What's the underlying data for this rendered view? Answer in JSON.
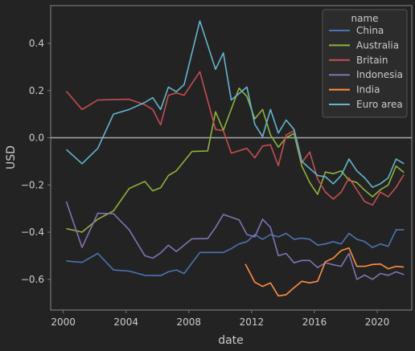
{
  "chart_data": {
    "type": "line",
    "title": "",
    "xlabel": "date",
    "ylabel": "USD",
    "xlim": [
      1999.2,
      2022.2
    ],
    "ylim": [
      -0.73,
      0.56
    ],
    "x_ticks": [
      2000,
      2004,
      2008,
      2012,
      2016,
      2020
    ],
    "x_tick_labels": [
      "2000",
      "2004",
      "2008",
      "2012",
      "2016",
      "2020"
    ],
    "y_ticks": [
      -0.6,
      -0.4,
      -0.2,
      0.0,
      0.2,
      0.4
    ],
    "y_tick_labels": [
      "−0.6",
      "−0.4",
      "−0.2",
      "0.0",
      "0.2",
      "0.4"
    ],
    "reference_line_y": 0,
    "grid": false,
    "legend": {
      "title": "name",
      "placement": "top-right"
    },
    "colors": {
      "background": "#232323",
      "axis": "#777777",
      "text": "#cccccc",
      "zero_line": "#aaaaaa",
      "legend_bg": "#2c2c2c"
    },
    "series": [
      {
        "name": "China",
        "color": "#4c72b0",
        "points": [
          [
            2000.2,
            -0.522
          ],
          [
            2001.2,
            -0.528
          ],
          [
            2002.2,
            -0.49
          ],
          [
            2003.2,
            -0.56
          ],
          [
            2004.2,
            -0.565
          ],
          [
            2005.2,
            -0.583
          ],
          [
            2006.2,
            -0.584
          ],
          [
            2006.7,
            -0.568
          ],
          [
            2007.2,
            -0.56
          ],
          [
            2007.7,
            -0.575
          ],
          [
            2008.7,
            -0.486
          ],
          [
            2010.2,
            -0.486
          ],
          [
            2010.7,
            -0.47
          ],
          [
            2011.2,
            -0.45
          ],
          [
            2011.7,
            -0.44
          ],
          [
            2012.2,
            -0.41
          ],
          [
            2012.7,
            -0.43
          ],
          [
            2013.2,
            -0.41
          ],
          [
            2013.7,
            -0.42
          ],
          [
            2014.2,
            -0.405
          ],
          [
            2014.7,
            -0.43
          ],
          [
            2015.2,
            -0.425
          ],
          [
            2015.7,
            -0.43
          ],
          [
            2016.2,
            -0.455
          ],
          [
            2016.7,
            -0.45
          ],
          [
            2017.2,
            -0.44
          ],
          [
            2017.7,
            -0.45
          ],
          [
            2018.2,
            -0.405
          ],
          [
            2018.7,
            -0.43
          ],
          [
            2019.2,
            -0.44
          ],
          [
            2019.7,
            -0.465
          ],
          [
            2020.2,
            -0.45
          ],
          [
            2020.7,
            -0.46
          ],
          [
            2021.2,
            -0.39
          ],
          [
            2021.7,
            -0.39
          ]
        ]
      },
      {
        "name": "Australia",
        "color": "#8eb33b",
        "points": [
          [
            2000.2,
            -0.385
          ],
          [
            2001.2,
            -0.4
          ],
          [
            2002.2,
            -0.345
          ],
          [
            2003.2,
            -0.31
          ],
          [
            2004.2,
            -0.215
          ],
          [
            2005.2,
            -0.185
          ],
          [
            2005.7,
            -0.225
          ],
          [
            2006.2,
            -0.212
          ],
          [
            2006.7,
            -0.16
          ],
          [
            2007.2,
            -0.14
          ],
          [
            2008.2,
            -0.058
          ],
          [
            2009.2,
            -0.056
          ],
          [
            2009.7,
            0.11
          ],
          [
            2010.2,
            0.032
          ],
          [
            2011.2,
            0.21
          ],
          [
            2011.7,
            0.175
          ],
          [
            2012.2,
            0.08
          ],
          [
            2012.7,
            0.12
          ],
          [
            2013.2,
            0.012
          ],
          [
            2013.7,
            -0.04
          ],
          [
            2014.2,
            0.0
          ],
          [
            2014.7,
            0.018
          ],
          [
            2015.2,
            -0.12
          ],
          [
            2015.7,
            -0.19
          ],
          [
            2016.2,
            -0.24
          ],
          [
            2016.7,
            -0.145
          ],
          [
            2017.2,
            -0.152
          ],
          [
            2017.7,
            -0.14
          ],
          [
            2018.2,
            -0.18
          ],
          [
            2018.7,
            -0.19
          ],
          [
            2019.2,
            -0.222
          ],
          [
            2019.7,
            -0.25
          ],
          [
            2020.2,
            -0.22
          ],
          [
            2020.7,
            -0.2
          ],
          [
            2021.2,
            -0.12
          ],
          [
            2021.7,
            -0.147
          ]
        ]
      },
      {
        "name": "Britain",
        "color": "#c44e52",
        "points": [
          [
            2000.2,
            0.197
          ],
          [
            2001.2,
            0.12
          ],
          [
            2002.2,
            0.16
          ],
          [
            2003.2,
            0.162
          ],
          [
            2004.2,
            0.163
          ],
          [
            2005.2,
            0.14
          ],
          [
            2005.7,
            0.12
          ],
          [
            2006.2,
            0.055
          ],
          [
            2006.7,
            0.18
          ],
          [
            2007.2,
            0.19
          ],
          [
            2007.7,
            0.18
          ],
          [
            2008.7,
            0.28
          ],
          [
            2009.7,
            0.035
          ],
          [
            2010.2,
            0.03
          ],
          [
            2010.7,
            -0.065
          ],
          [
            2011.7,
            -0.045
          ],
          [
            2012.2,
            -0.085
          ],
          [
            2012.7,
            -0.035
          ],
          [
            2013.2,
            -0.03
          ],
          [
            2013.7,
            -0.118
          ],
          [
            2014.2,
            0.012
          ],
          [
            2014.7,
            0.03
          ],
          [
            2015.2,
            -0.105
          ],
          [
            2015.7,
            -0.06
          ],
          [
            2016.2,
            -0.175
          ],
          [
            2016.7,
            -0.23
          ],
          [
            2017.2,
            -0.26
          ],
          [
            2017.7,
            -0.23
          ],
          [
            2018.2,
            -0.17
          ],
          [
            2018.7,
            -0.22
          ],
          [
            2019.2,
            -0.27
          ],
          [
            2019.7,
            -0.285
          ],
          [
            2020.2,
            -0.23
          ],
          [
            2020.7,
            -0.25
          ],
          [
            2021.2,
            -0.21
          ],
          [
            2021.7,
            -0.156
          ]
        ]
      },
      {
        "name": "Indonesia",
        "color": "#8172b3",
        "points": [
          [
            2000.2,
            -0.27
          ],
          [
            2001.2,
            -0.465
          ],
          [
            2002.2,
            -0.32
          ],
          [
            2003.2,
            -0.322
          ],
          [
            2004.2,
            -0.39
          ],
          [
            2005.2,
            -0.5
          ],
          [
            2005.7,
            -0.51
          ],
          [
            2006.2,
            -0.488
          ],
          [
            2006.7,
            -0.455
          ],
          [
            2007.2,
            -0.482
          ],
          [
            2008.2,
            -0.428
          ],
          [
            2009.2,
            -0.427
          ],
          [
            2009.7,
            -0.38
          ],
          [
            2010.2,
            -0.325
          ],
          [
            2011.2,
            -0.348
          ],
          [
            2011.7,
            -0.41
          ],
          [
            2012.2,
            -0.42
          ],
          [
            2012.7,
            -0.345
          ],
          [
            2013.2,
            -0.38
          ],
          [
            2013.7,
            -0.5
          ],
          [
            2014.2,
            -0.49
          ],
          [
            2014.7,
            -0.53
          ],
          [
            2015.2,
            -0.52
          ],
          [
            2015.7,
            -0.52
          ],
          [
            2016.2,
            -0.55
          ],
          [
            2016.7,
            -0.53
          ],
          [
            2017.2,
            -0.538
          ],
          [
            2017.7,
            -0.545
          ],
          [
            2018.2,
            -0.49
          ],
          [
            2018.7,
            -0.6
          ],
          [
            2019.2,
            -0.582
          ],
          [
            2019.7,
            -0.6
          ],
          [
            2020.2,
            -0.575
          ],
          [
            2020.7,
            -0.583
          ],
          [
            2021.2,
            -0.568
          ],
          [
            2021.7,
            -0.58
          ]
        ]
      },
      {
        "name": "India",
        "color": "#ff8f3f",
        "points": [
          [
            2011.6,
            -0.535
          ],
          [
            2012.2,
            -0.612
          ],
          [
            2012.7,
            -0.63
          ],
          [
            2013.2,
            -0.615
          ],
          [
            2013.7,
            -0.67
          ],
          [
            2014.2,
            -0.665
          ],
          [
            2014.7,
            -0.635
          ],
          [
            2015.2,
            -0.608
          ],
          [
            2015.7,
            -0.615
          ],
          [
            2016.2,
            -0.608
          ],
          [
            2016.7,
            -0.525
          ],
          [
            2017.2,
            -0.51
          ],
          [
            2017.7,
            -0.478
          ],
          [
            2018.2,
            -0.467
          ],
          [
            2018.7,
            -0.545
          ],
          [
            2019.2,
            -0.545
          ],
          [
            2019.7,
            -0.537
          ],
          [
            2020.2,
            -0.535
          ],
          [
            2020.7,
            -0.555
          ],
          [
            2021.2,
            -0.545
          ],
          [
            2021.7,
            -0.548
          ]
        ]
      },
      {
        "name": "Euro area",
        "color": "#64b5cd",
        "points": [
          [
            2000.2,
            -0.05
          ],
          [
            2001.2,
            -0.11
          ],
          [
            2002.2,
            -0.045
          ],
          [
            2003.2,
            0.1
          ],
          [
            2004.2,
            0.12
          ],
          [
            2005.2,
            0.15
          ],
          [
            2005.7,
            0.17
          ],
          [
            2006.2,
            0.12
          ],
          [
            2006.7,
            0.215
          ],
          [
            2007.2,
            0.195
          ],
          [
            2007.7,
            0.225
          ],
          [
            2008.7,
            0.495
          ],
          [
            2009.7,
            0.29
          ],
          [
            2010.2,
            0.36
          ],
          [
            2010.7,
            0.16
          ],
          [
            2011.7,
            0.215
          ],
          [
            2012.2,
            0.057
          ],
          [
            2012.7,
            0.005
          ],
          [
            2013.2,
            0.12
          ],
          [
            2013.7,
            0.02
          ],
          [
            2014.2,
            0.075
          ],
          [
            2014.7,
            0.035
          ],
          [
            2015.2,
            -0.1
          ],
          [
            2015.7,
            -0.13
          ],
          [
            2016.2,
            -0.16
          ],
          [
            2016.7,
            -0.165
          ],
          [
            2017.2,
            -0.195
          ],
          [
            2017.7,
            -0.16
          ],
          [
            2018.2,
            -0.09
          ],
          [
            2018.7,
            -0.14
          ],
          [
            2019.2,
            -0.17
          ],
          [
            2019.7,
            -0.21
          ],
          [
            2020.2,
            -0.195
          ],
          [
            2020.7,
            -0.17
          ],
          [
            2021.2,
            -0.09
          ],
          [
            2021.7,
            -0.11
          ]
        ]
      }
    ]
  }
}
